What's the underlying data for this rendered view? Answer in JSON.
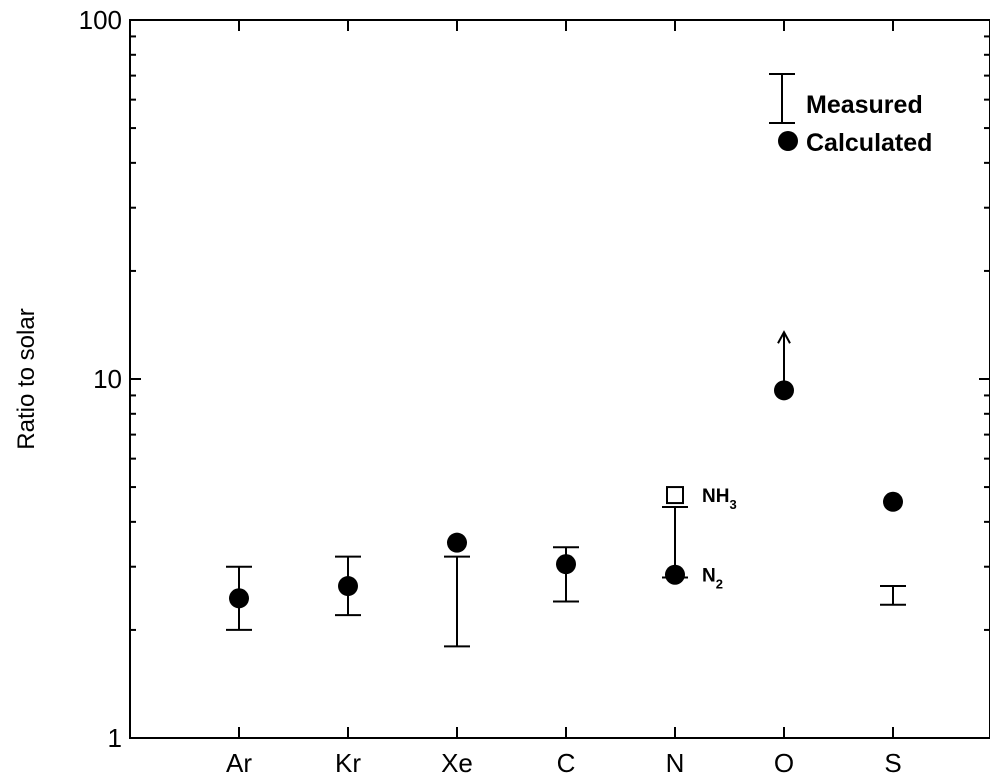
{
  "chart_data": {
    "type": "scatter",
    "title": "",
    "xlabel": "",
    "ylabel": "Ratio to solar",
    "y_scale": "log",
    "ylim": [
      1,
      100
    ],
    "y_ticks": [
      {
        "value": 1,
        "label": "1"
      },
      {
        "value": 10,
        "label": "10"
      },
      {
        "value": 100,
        "label": "100"
      }
    ],
    "categories": [
      "Ar",
      "Kr",
      "Xe",
      "C",
      "N",
      "O",
      "S"
    ],
    "grid": false,
    "legend_position": "top-right",
    "legend": [
      {
        "label": "Measured",
        "symbol": "error-bar"
      },
      {
        "label": "Calculated",
        "symbol": "filled-circle"
      }
    ],
    "series": [
      {
        "name": "Measured",
        "kind": "error-bar",
        "ranges": [
          {
            "category": "Ar",
            "low": 2.0,
            "high": 3.0
          },
          {
            "category": "Kr",
            "low": 2.2,
            "high": 3.2
          },
          {
            "category": "Xe",
            "low": 1.8,
            "high": 3.2
          },
          {
            "category": "C",
            "low": 2.4,
            "high": 3.4
          },
          {
            "category": "N",
            "low": 2.8,
            "high": 4.4
          },
          {
            "category": "S",
            "low": 2.35,
            "high": 2.65
          }
        ]
      },
      {
        "name": "Calculated",
        "kind": "filled-circle",
        "points": [
          {
            "category": "Ar",
            "value": 2.45
          },
          {
            "category": "Kr",
            "value": 2.65
          },
          {
            "category": "Xe",
            "value": 3.5
          },
          {
            "category": "C",
            "value": 3.05
          },
          {
            "category": "N",
            "value": 2.85,
            "label": "N",
            "label_sub": "2"
          },
          {
            "category": "O",
            "value": 9.3
          },
          {
            "category": "S",
            "value": 4.55
          }
        ]
      },
      {
        "kind": "open-square",
        "points": [
          {
            "category": "N",
            "value": 4.75,
            "label": "NH",
            "label_sub": "3"
          }
        ]
      }
    ],
    "lower_limits": [
      {
        "category": "O",
        "value": 9.3,
        "arrow_to": 13.5
      }
    ]
  }
}
